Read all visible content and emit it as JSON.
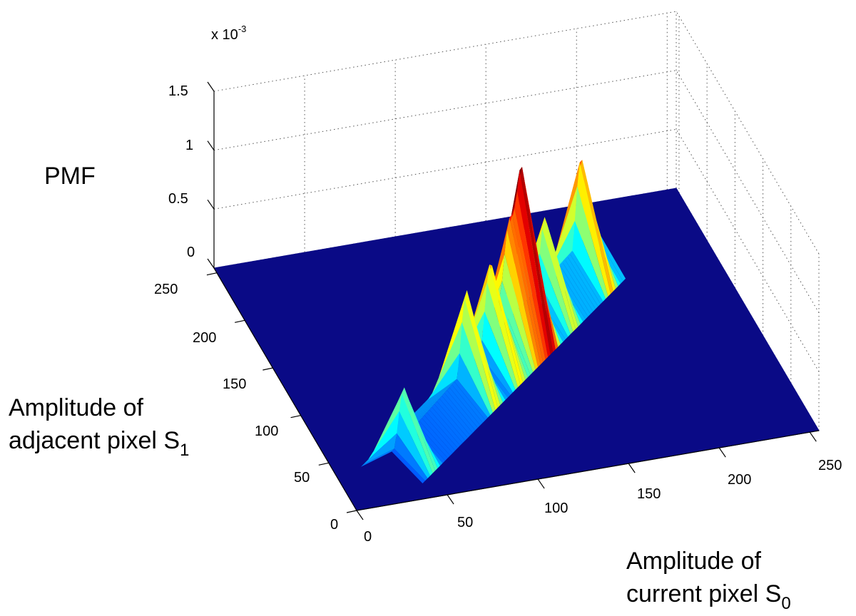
{
  "chart_data": {
    "type": "surface",
    "zlabel": "PMF",
    "xlabel_line1": "Amplitude of",
    "xlabel_line2": "current pixel S",
    "xlabel_sub": "0",
    "ylabel_line1": "Amplitude of",
    "ylabel_line2": "adjacent pixel S",
    "ylabel_sub": "1",
    "z_multiplier": "x 10",
    "z_multiplier_exp": "-3",
    "xlim": [
      0,
      255
    ],
    "ylim": [
      0,
      255
    ],
    "zlim": [
      0,
      1.5
    ],
    "x_ticks": [
      "0",
      "50",
      "100",
      "150",
      "200",
      "250"
    ],
    "y_ticks": [
      "0",
      "50",
      "100",
      "150",
      "200",
      "250"
    ],
    "z_ticks": [
      "0",
      "0.5",
      "1",
      "1.5"
    ],
    "grid": true,
    "colormap": "jet",
    "ridge_along": "x = y diagonal",
    "peaks": [
      {
        "x": 35,
        "y": 40,
        "z": 0.64
      },
      {
        "x": 85,
        "y": 90,
        "z": 0.93
      },
      {
        "x": 105,
        "y": 108,
        "z": 0.95
      },
      {
        "x": 120,
        "y": 122,
        "z": 1.06
      },
      {
        "x": 131,
        "y": 133,
        "z": 1.47
      },
      {
        "x": 150,
        "y": 150,
        "z": 0.88
      },
      {
        "x": 178,
        "y": 180,
        "z": 1.07
      }
    ]
  }
}
